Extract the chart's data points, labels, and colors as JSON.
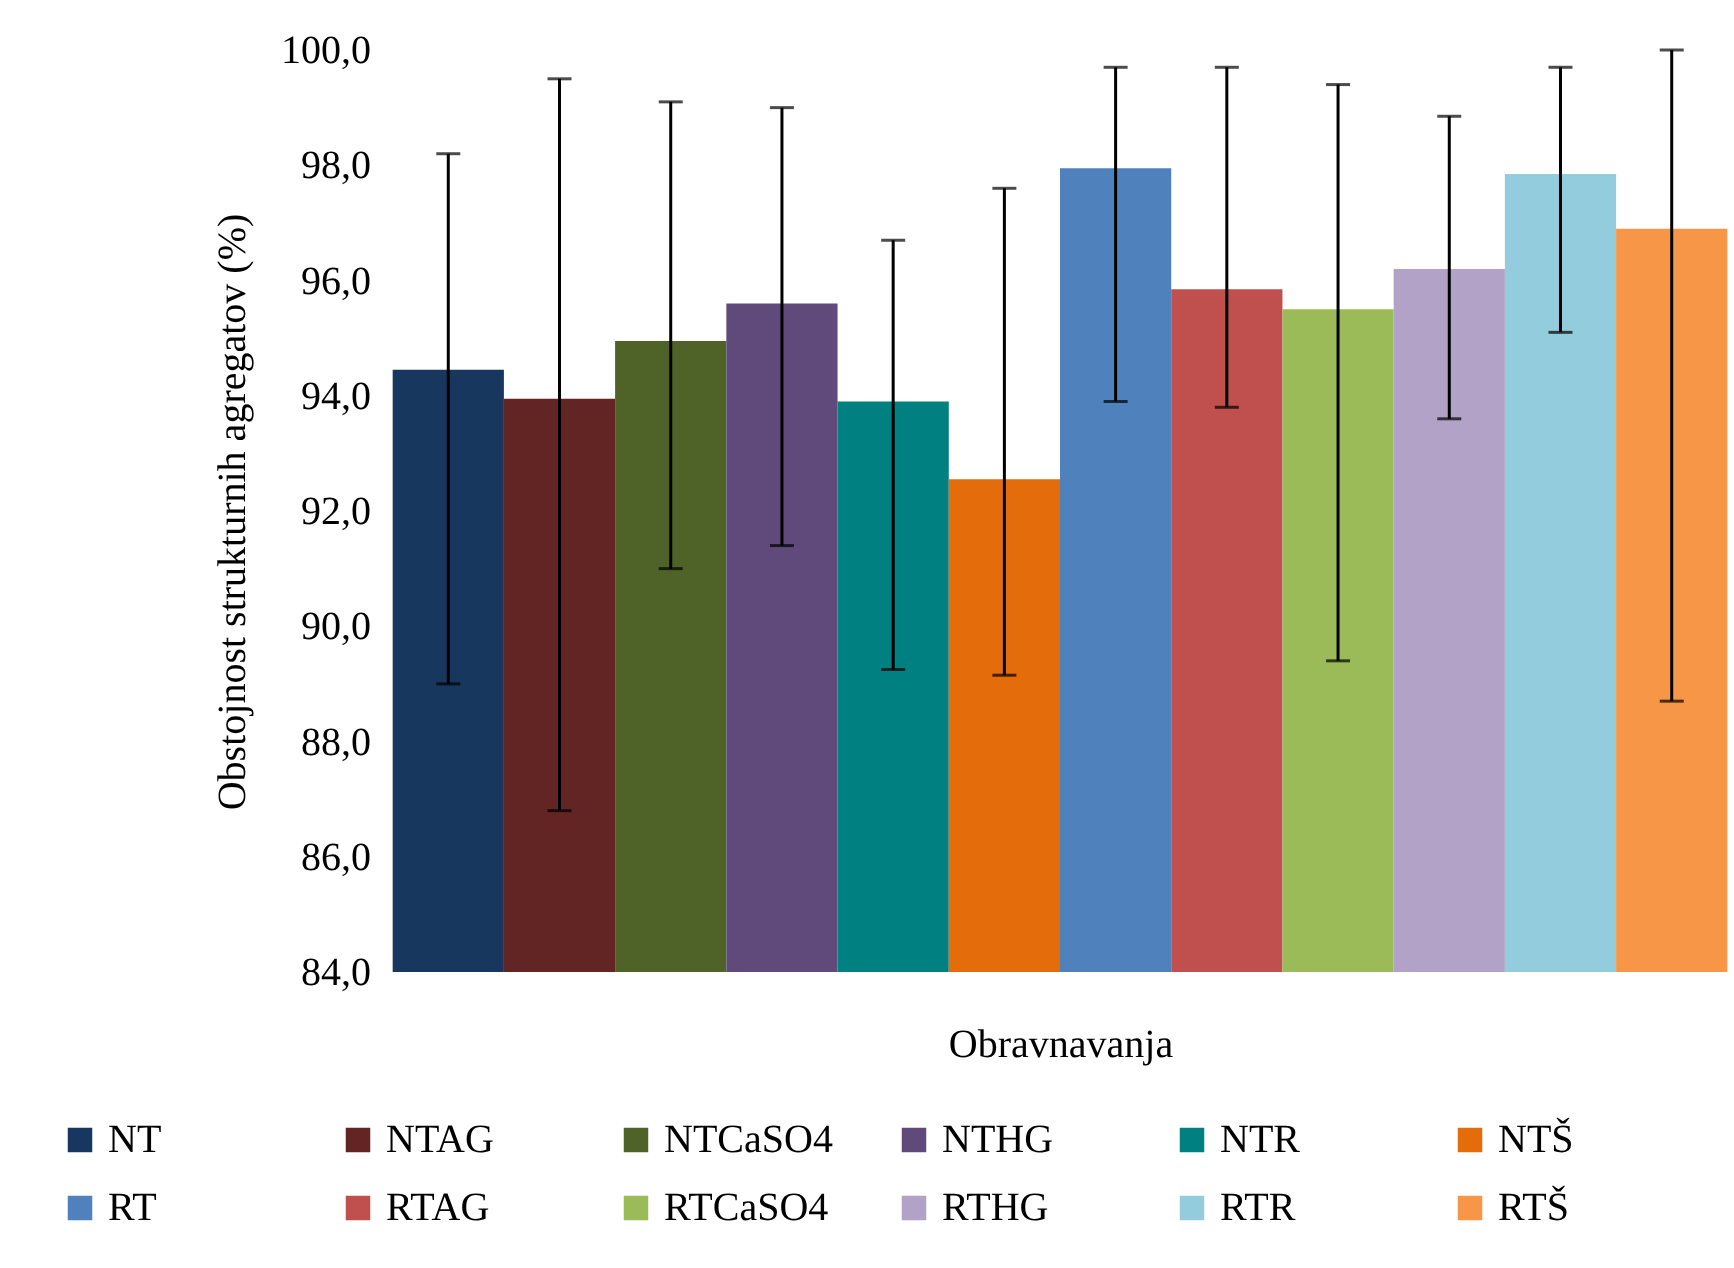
{
  "chart_data": {
    "type": "bar",
    "xlabel": "Obravnavanja",
    "ylabel": "Obstojnost strukturnih agregatov (%)",
    "categories": [
      null
    ],
    "ylim": [
      84,
      100
    ],
    "yticks": [
      {
        "value": 84,
        "label": "84,0"
      },
      {
        "value": 86,
        "label": "86,0"
      },
      {
        "value": 88,
        "label": "88,0"
      },
      {
        "value": 90,
        "label": "90,0"
      },
      {
        "value": 92,
        "label": "92,0"
      },
      {
        "value": 94,
        "label": "94,0"
      },
      {
        "value": 96,
        "label": "96,0"
      },
      {
        "value": 98,
        "label": "98,0"
      },
      {
        "value": 100,
        "label": "100,0"
      }
    ],
    "legend": "bottom",
    "series": [
      {
        "name": "NT",
        "color": "#17375e",
        "values": [
          94.45
        ],
        "errors": [
          [
            89.0,
            98.2
          ]
        ]
      },
      {
        "name": "NTAG",
        "color": "#632523",
        "values": [
          93.95
        ],
        "errors": [
          [
            86.8,
            99.5
          ]
        ]
      },
      {
        "name": "NTCaSO4",
        "color": "#4f6228",
        "values": [
          94.95
        ],
        "errors": [
          [
            91.0,
            99.1
          ]
        ]
      },
      {
        "name": "NTHG",
        "color": "#604a7b",
        "values": [
          95.6
        ],
        "errors": [
          [
            91.4,
            99.0
          ]
        ]
      },
      {
        "name": "NTR",
        "color": "#008080",
        "values": [
          93.9
        ],
        "errors": [
          [
            89.25,
            96.7
          ]
        ]
      },
      {
        "name": "NTŠ",
        "color": "#e46c0a",
        "values": [
          92.55
        ],
        "errors": [
          [
            89.15,
            97.6
          ]
        ]
      },
      {
        "name": "RT",
        "color": "#4f81bd",
        "values": [
          97.95
        ],
        "errors": [
          [
            93.9,
            99.7
          ]
        ]
      },
      {
        "name": "RTAG",
        "color": "#c0504d",
        "values": [
          95.85
        ],
        "errors": [
          [
            93.8,
            99.7
          ]
        ]
      },
      {
        "name": "RTCaSO4",
        "color": "#9bbb59",
        "values": [
          95.5
        ],
        "errors": [
          [
            89.4,
            99.4
          ]
        ]
      },
      {
        "name": "RTHG",
        "color": "#b2a2c7",
        "values": [
          96.2
        ],
        "errors": [
          [
            93.6,
            98.85
          ]
        ]
      },
      {
        "name": "RTR",
        "color": "#93cddd",
        "values": [
          97.85
        ],
        "errors": [
          [
            95.1,
            99.7
          ]
        ]
      },
      {
        "name": "RTŠ",
        "color": "#f79646",
        "values": [
          96.9
        ],
        "errors": [
          [
            88.7,
            100.0
          ]
        ]
      }
    ]
  }
}
